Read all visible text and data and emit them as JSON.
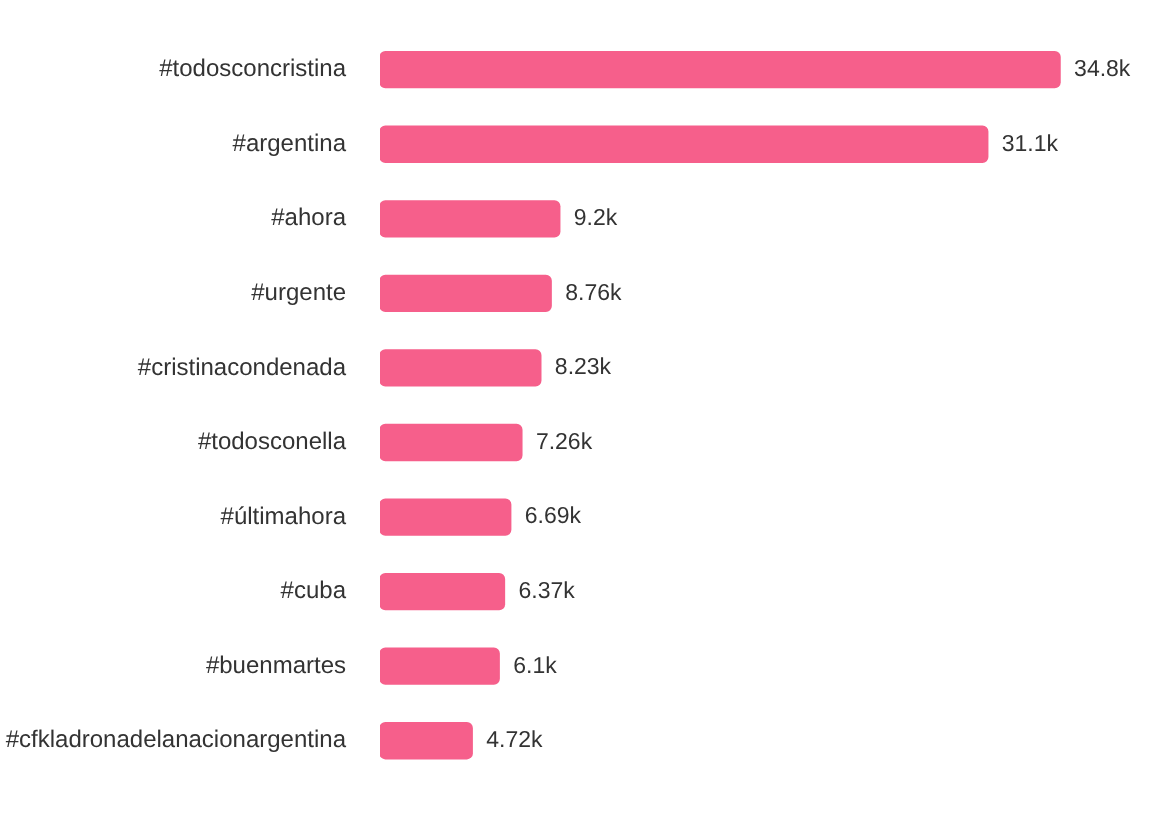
{
  "chart_data": {
    "type": "bar",
    "orientation": "horizontal",
    "categories": [
      "#todosconcristina",
      "#argentina",
      "#ahora",
      "#urgente",
      "#cristinacondenada",
      "#todosconella",
      "#últimahora",
      "#cuba",
      "#buenmartes",
      "#cfkladronadelanacionargentina"
    ],
    "values": [
      34800,
      31100,
      9200,
      8760,
      8230,
      7260,
      6690,
      6370,
      6100,
      4720
    ],
    "value_labels": [
      "34.8k",
      "31.1k",
      "9.2k",
      "8.76k",
      "8.23k",
      "7.26k",
      "6.69k",
      "6.37k",
      "6.1k",
      "4.72k"
    ],
    "color": "#f65f8b",
    "tick_labels": "y"
  }
}
